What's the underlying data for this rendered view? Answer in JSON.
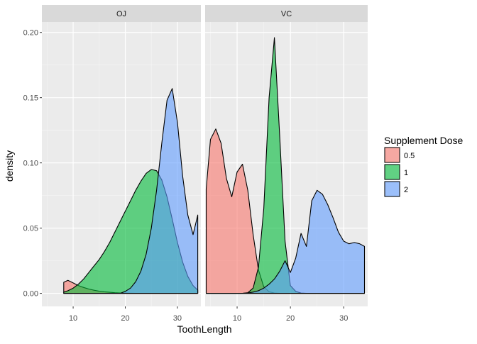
{
  "chart_data": {
    "type": "area",
    "subtype": "faceted density",
    "xlabel": "ToothLength",
    "ylabel": "density",
    "x_ticks": [
      10,
      20,
      30
    ],
    "y_ticks": [
      0.0,
      0.05,
      0.1,
      0.15,
      0.2
    ],
    "y_tick_labels": [
      "0.00",
      "0.05",
      "0.10",
      "0.15",
      "0.20"
    ],
    "xlim": [
      4,
      34.5
    ],
    "ylim": [
      -0.01,
      0.208
    ],
    "grid": true,
    "legend": {
      "title": "Supplement Dose",
      "position": "right",
      "entries": [
        {
          "label": "0.5",
          "color": "#F8766D"
        },
        {
          "label": "1",
          "color": "#00BA38"
        },
        {
          "label": "2",
          "color": "#619CFF"
        }
      ]
    },
    "facets": [
      {
        "label": "OJ",
        "series": [
          {
            "name": "0.5",
            "color": "#F8766D",
            "x": [
              8.2,
              9,
              10,
              11,
              12,
              13,
              14,
              15,
              16,
              17,
              18,
              19,
              20,
              21,
              22,
              23,
              24,
              25,
              26,
              27,
              28,
              29,
              30,
              31,
              32,
              33,
              33.9
            ],
            "y": [
              0.0085,
              0.01,
              0.008,
              0.006,
              0.0045,
              0.0033,
              0.0024,
              0.0017,
              0.0012,
              0.0008,
              0.0005,
              0.0003,
              0.0002,
              0.0001,
              6e-05,
              4e-05,
              2e-05,
              1e-05,
              0,
              0,
              0,
              0,
              0,
              0,
              0,
              0,
              0
            ]
          },
          {
            "name": "1",
            "color": "#00BA38",
            "x": [
              8.2,
              9,
              10,
              11,
              12,
              13,
              14,
              15,
              16,
              17,
              18,
              19,
              20,
              21,
              22,
              23,
              24,
              25,
              26,
              27,
              28,
              29,
              30,
              31,
              32,
              33,
              33.9
            ],
            "y": [
              0.001,
              0.002,
              0.004,
              0.007,
              0.011,
              0.016,
              0.021,
              0.026,
              0.032,
              0.039,
              0.047,
              0.055,
              0.063,
              0.071,
              0.079,
              0.086,
              0.092,
              0.095,
              0.094,
              0.087,
              0.074,
              0.057,
              0.039,
              0.024,
              0.013,
              0.006,
              0.0025
            ]
          },
          {
            "name": "2",
            "color": "#619CFF",
            "x": [
              8.2,
              9,
              10,
              11,
              12,
              13,
              14,
              15,
              16,
              17,
              18,
              19,
              20,
              21,
              22,
              23,
              24,
              25,
              26,
              27,
              28,
              29,
              30,
              31,
              32,
              33,
              33.9
            ],
            "y": [
              0,
              0,
              0,
              0,
              0,
              0,
              0,
              0,
              0,
              0,
              0,
              0,
              0.0015,
              0.004,
              0.009,
              0.017,
              0.03,
              0.05,
              0.079,
              0.115,
              0.148,
              0.157,
              0.131,
              0.09,
              0.06,
              0.045,
              0.06
            ]
          }
        ]
      },
      {
        "label": "VC",
        "series": [
          {
            "name": "0.5",
            "color": "#F8766D",
            "x": [
              4.2,
              5,
              6,
              7,
              8,
              9,
              10,
              11,
              12,
              13,
              14,
              15,
              16,
              17,
              18,
              19,
              20,
              21,
              22,
              23,
              24,
              25,
              26,
              27,
              28,
              29,
              30,
              31,
              32,
              33,
              33.9
            ],
            "y": [
              0.08,
              0.118,
              0.126,
              0.115,
              0.088,
              0.074,
              0.093,
              0.099,
              0.079,
              0.045,
              0.018,
              0.005,
              0.0012,
              0.0002,
              0,
              0,
              0,
              0,
              0,
              0,
              0,
              0,
              0,
              0,
              0,
              0,
              0,
              0,
              0,
              0,
              0
            ]
          },
          {
            "name": "1",
            "color": "#00BA38",
            "x": [
              4.2,
              5,
              6,
              7,
              8,
              9,
              10,
              11,
              12,
              13,
              14,
              15,
              16,
              17,
              18,
              19,
              20,
              21,
              22,
              23,
              24,
              25,
              26,
              27,
              28,
              29,
              30,
              31,
              32,
              33,
              33.9
            ],
            "y": [
              0,
              0,
              0,
              0,
              0,
              0,
              0,
              0,
              0.0005,
              0.004,
              0.02,
              0.065,
              0.15,
              0.196,
              0.12,
              0.04,
              0.006,
              0.0015,
              0.0002,
              0,
              0,
              0,
              0,
              0,
              0,
              0,
              0,
              0,
              0,
              0,
              0
            ]
          },
          {
            "name": "2",
            "color": "#619CFF",
            "x": [
              4.2,
              5,
              6,
              7,
              8,
              9,
              10,
              11,
              12,
              13,
              14,
              15,
              16,
              17,
              18,
              19,
              20,
              21,
              22,
              23,
              24,
              25,
              26,
              27,
              28,
              29,
              30,
              31,
              32,
              33,
              33.9
            ],
            "y": [
              0,
              0,
              0,
              0,
              0,
              0,
              0,
              0,
              0.0003,
              0.001,
              0.002,
              0.004,
              0.007,
              0.011,
              0.017,
              0.025,
              0.016,
              0.027,
              0.046,
              0.036,
              0.071,
              0.079,
              0.076,
              0.068,
              0.058,
              0.047,
              0.04,
              0.038,
              0.039,
              0.038,
              0.036
            ]
          }
        ]
      }
    ]
  }
}
